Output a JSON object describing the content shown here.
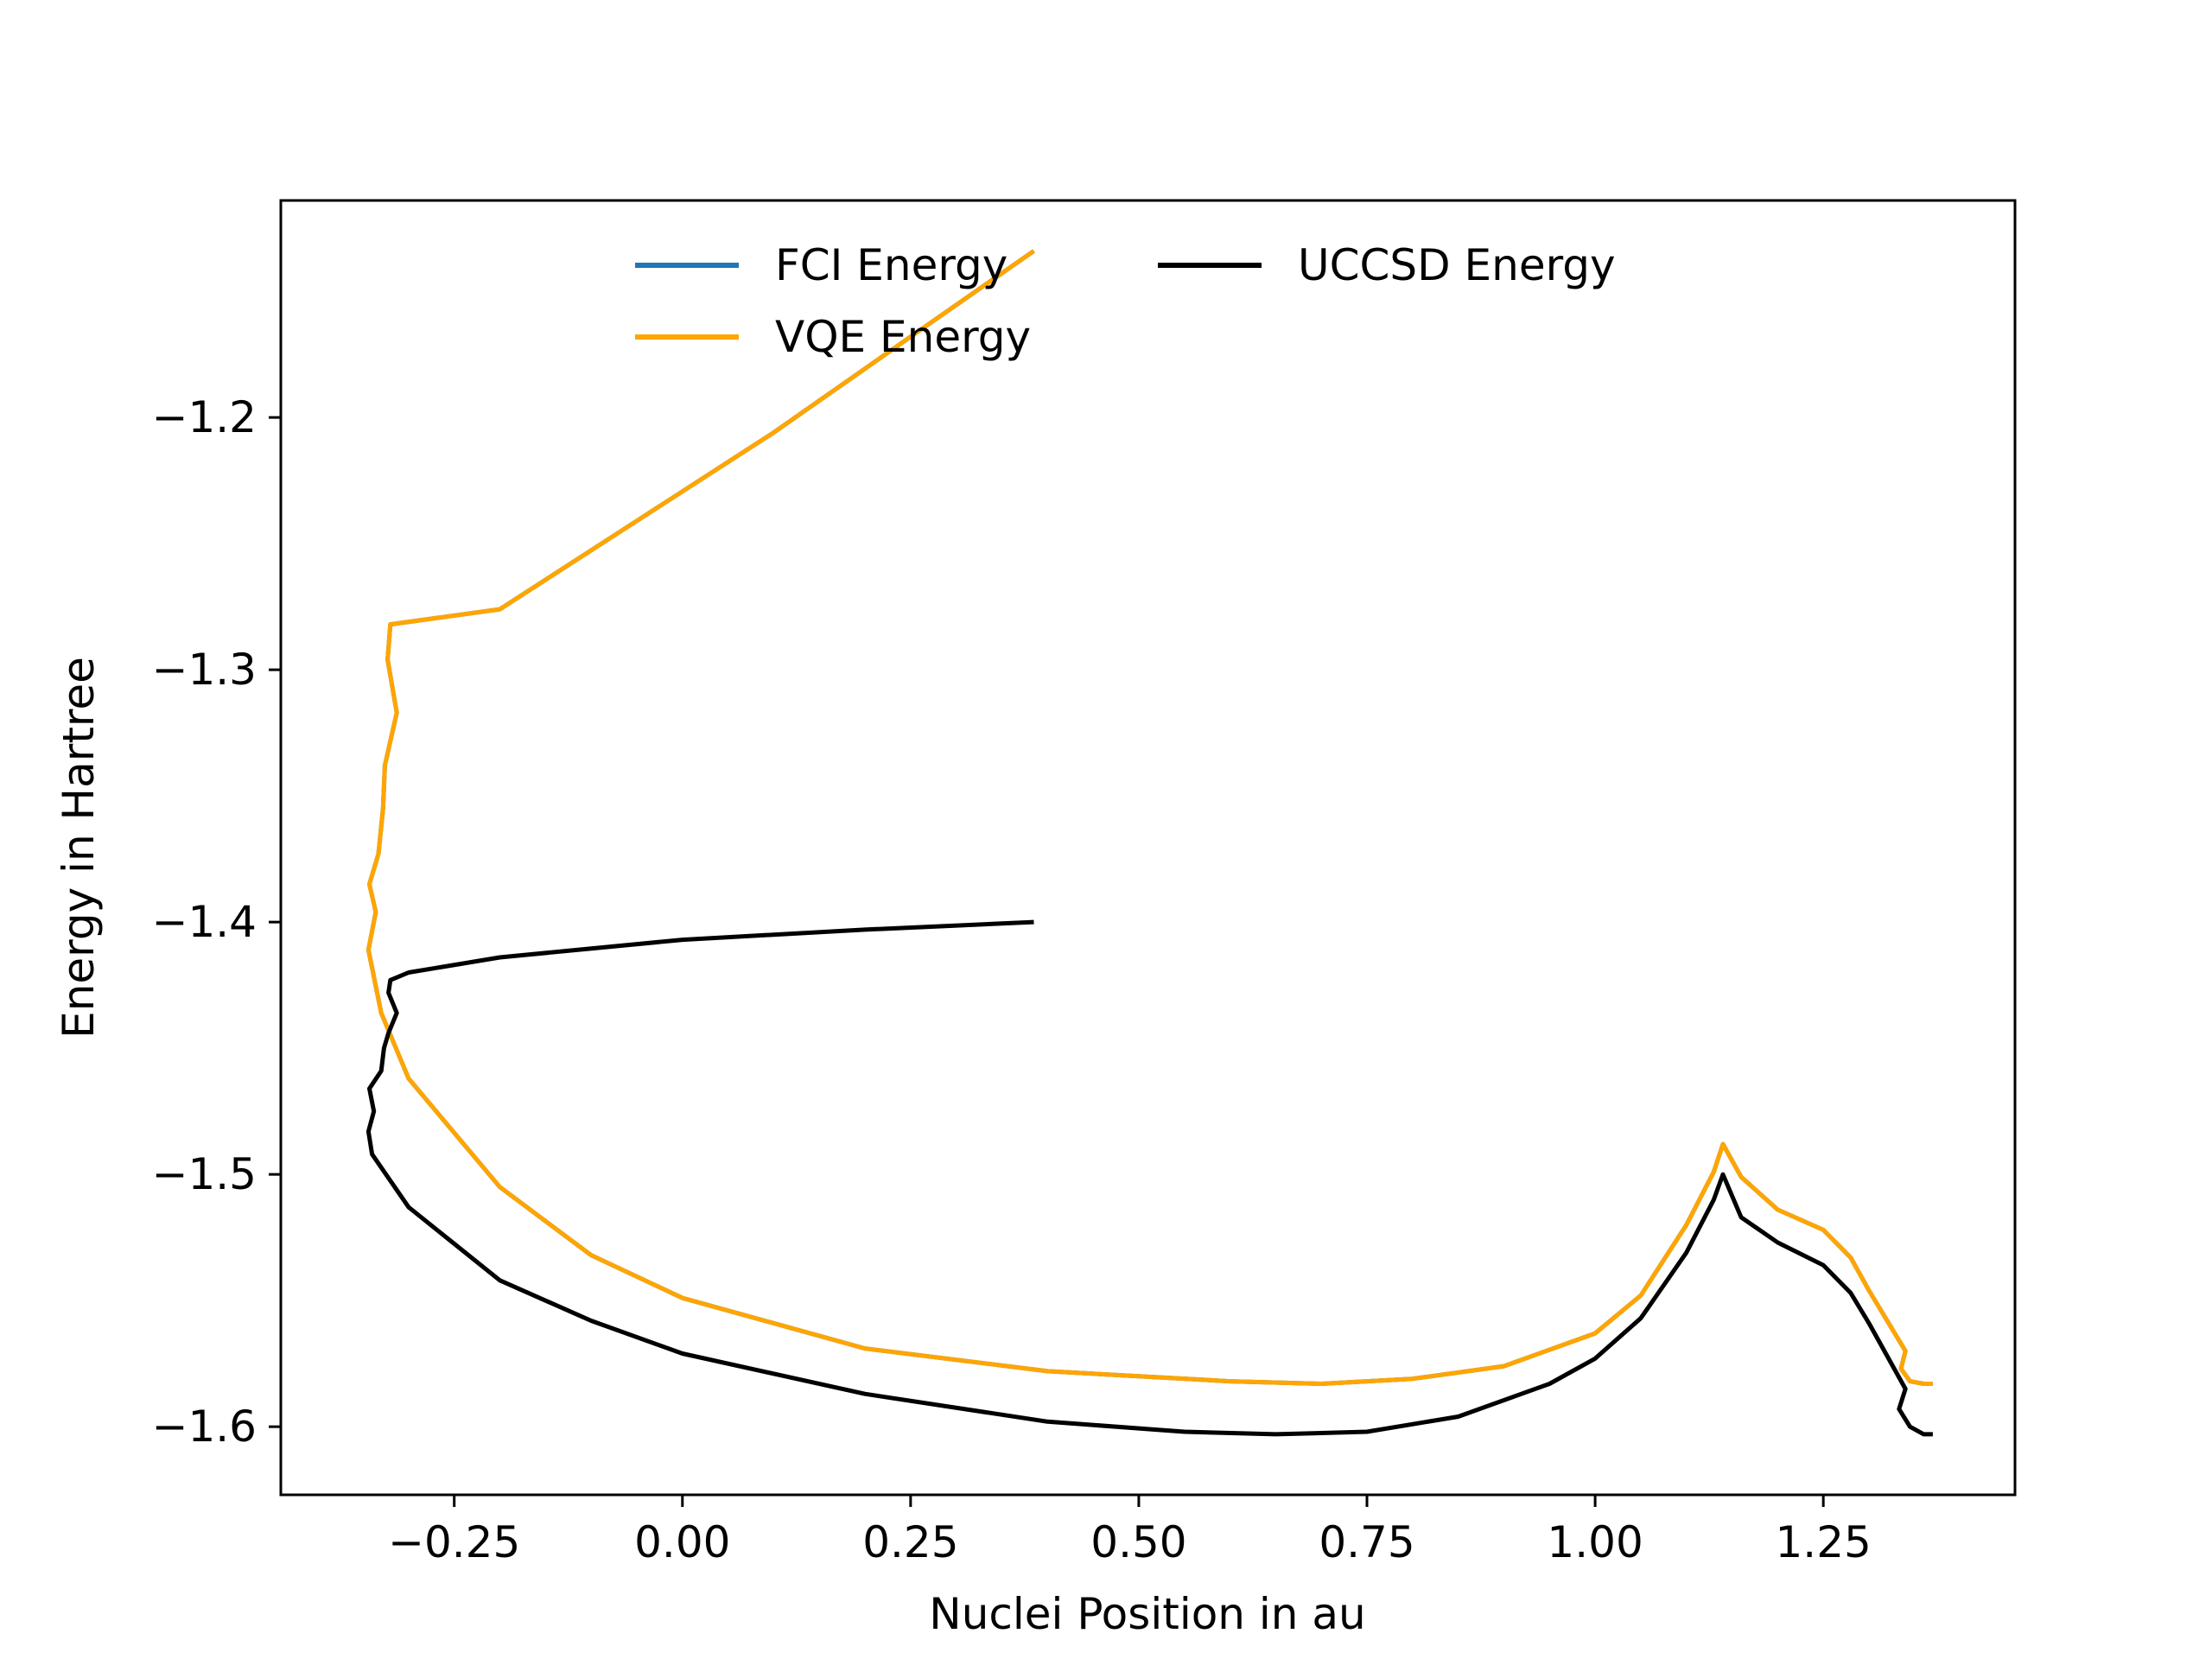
{
  "chart_data": {
    "type": "line",
    "xlabel": "Nuclei Position in au",
    "ylabel": "Energy in Hartree",
    "xlim": [
      -0.44,
      1.46
    ],
    "ylim": [
      -1.627,
      -1.114
    ],
    "xticks": [
      -0.25,
      0.0,
      0.25,
      0.5,
      0.75,
      1.0,
      1.25
    ],
    "xtick_labels": [
      "−0.25",
      "0.00",
      "0.25",
      "0.50",
      "0.75",
      "1.00",
      "1.25"
    ],
    "yticks": [
      -1.2,
      -1.3,
      -1.4,
      -1.5,
      -1.6
    ],
    "ytick_labels": [
      "−1.2",
      "−1.3",
      "−1.4",
      "−1.5",
      "−1.6"
    ],
    "legend": {
      "placement": "upper center",
      "columns": 2
    },
    "series": [
      {
        "name": "FCI Energy",
        "color": "#1f77b4",
        "x": [
          0.385,
          0.25,
          0.1,
          -0.05,
          -0.2,
          -0.32,
          -0.323,
          -0.313,
          -0.326,
          -0.328,
          -0.333,
          -0.343,
          -0.336,
          -0.344,
          -0.33,
          -0.3,
          -0.2,
          -0.1,
          0.0,
          0.2,
          0.4,
          0.6,
          0.7,
          0.8,
          0.9,
          1.0,
          1.05,
          1.1,
          1.13,
          1.14,
          1.16,
          1.2,
          1.25,
          1.28,
          1.3,
          1.34,
          1.335,
          1.345,
          1.36,
          1.37
        ],
        "y": [
          -1.134,
          -1.168,
          -1.206,
          -1.241,
          -1.276,
          -1.282,
          -1.296,
          -1.317,
          -1.338,
          -1.355,
          -1.373,
          -1.385,
          -1.396,
          -1.411,
          -1.436,
          -1.462,
          -1.505,
          -1.532,
          -1.549,
          -1.569,
          -1.578,
          -1.582,
          -1.583,
          -1.581,
          -1.576,
          -1.563,
          -1.548,
          -1.52,
          -1.499,
          -1.488,
          -1.501,
          -1.514,
          -1.522,
          -1.533,
          -1.546,
          -1.57,
          -1.577,
          -1.582,
          -1.583,
          -1.583
        ]
      },
      {
        "name": "VQE Energy",
        "color": "#ffa500",
        "x": [
          0.385,
          0.25,
          0.1,
          -0.05,
          -0.2,
          -0.32,
          -0.323,
          -0.313,
          -0.326,
          -0.328,
          -0.333,
          -0.343,
          -0.336,
          -0.344,
          -0.33,
          -0.3,
          -0.2,
          -0.1,
          0.0,
          0.2,
          0.4,
          0.6,
          0.7,
          0.8,
          0.9,
          1.0,
          1.05,
          1.1,
          1.13,
          1.14,
          1.16,
          1.2,
          1.25,
          1.28,
          1.3,
          1.34,
          1.335,
          1.345,
          1.36,
          1.37
        ],
        "y": [
          -1.134,
          -1.168,
          -1.206,
          -1.241,
          -1.276,
          -1.282,
          -1.296,
          -1.317,
          -1.338,
          -1.355,
          -1.373,
          -1.385,
          -1.396,
          -1.411,
          -1.436,
          -1.462,
          -1.505,
          -1.532,
          -1.549,
          -1.569,
          -1.578,
          -1.582,
          -1.583,
          -1.581,
          -1.576,
          -1.563,
          -1.548,
          -1.52,
          -1.499,
          -1.488,
          -1.501,
          -1.514,
          -1.522,
          -1.533,
          -1.546,
          -1.57,
          -1.577,
          -1.582,
          -1.583,
          -1.583
        ]
      },
      {
        "name": "UCCSD Energy",
        "color": "#000000",
        "x": [
          0.385,
          0.2,
          0.0,
          -0.2,
          -0.3,
          -0.32,
          -0.322,
          -0.313,
          -0.322,
          -0.327,
          -0.33,
          -0.343,
          -0.338,
          -0.344,
          -0.34,
          -0.3,
          -0.2,
          -0.1,
          0.0,
          0.2,
          0.4,
          0.55,
          0.65,
          0.75,
          0.85,
          0.95,
          1.0,
          1.05,
          1.1,
          1.13,
          1.14,
          1.16,
          1.2,
          1.25,
          1.28,
          1.3,
          1.34,
          1.333,
          1.345,
          1.36,
          1.37
        ],
        "y": [
          -1.4,
          -1.403,
          -1.407,
          -1.414,
          -1.42,
          -1.423,
          -1.428,
          -1.436,
          -1.444,
          -1.45,
          -1.459,
          -1.466,
          -1.475,
          -1.483,
          -1.492,
          -1.513,
          -1.542,
          -1.558,
          -1.571,
          -1.587,
          -1.598,
          -1.602,
          -1.603,
          -1.602,
          -1.596,
          -1.583,
          -1.573,
          -1.557,
          -1.531,
          -1.51,
          -1.5,
          -1.517,
          -1.527,
          -1.536,
          -1.547,
          -1.559,
          -1.585,
          -1.593,
          -1.6,
          -1.603,
          -1.603
        ]
      }
    ]
  }
}
